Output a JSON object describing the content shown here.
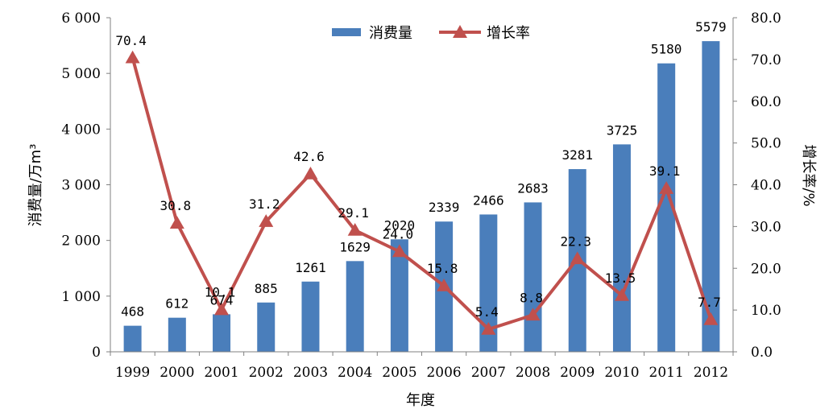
{
  "chart_data": {
    "type": "bar+line",
    "categories": [
      "1999",
      "2000",
      "2001",
      "2002",
      "2003",
      "2004",
      "2005",
      "2006",
      "2007",
      "2008",
      "2009",
      "2010",
      "2011",
      "2012"
    ],
    "series": [
      {
        "name": "消费量",
        "type": "bar",
        "axis": "left",
        "color": "#4a7ebb",
        "values": [
          468,
          612,
          674,
          885,
          1261,
          1629,
          2020,
          2339,
          2466,
          2683,
          3281,
          3725,
          5180,
          5579
        ],
        "labels": [
          "468",
          "612",
          "674",
          "885",
          "1261",
          "1629",
          "2020",
          "2339",
          "2466",
          "2683",
          "3281",
          "3725",
          "5180",
          "5579"
        ]
      },
      {
        "name": "增长率",
        "type": "line",
        "axis": "right",
        "color": "#c0504d",
        "values": [
          70.4,
          30.8,
          10.1,
          31.2,
          42.6,
          29.1,
          24.0,
          15.8,
          5.4,
          8.8,
          22.3,
          13.5,
          39.1,
          7.7
        ],
        "labels": [
          "70.4",
          "30.8",
          "10.1",
          "31.2",
          "42.6",
          "29.1",
          "24.0",
          "15.8",
          "5.4",
          "8.8",
          "22.3",
          "13.5",
          "39.1",
          "7.7"
        ]
      }
    ],
    "xlabel": "年度",
    "ylabel_left": "消费量/万m³",
    "ylabel_right": "增长率/%",
    "ylim_left": [
      0,
      6000
    ],
    "ylim_right": [
      0,
      80
    ],
    "yticks_left": [
      0,
      1000,
      2000,
      3000,
      4000,
      5000,
      6000
    ],
    "ytick_labels_left": [
      "0",
      "1 000",
      "2 000",
      "3 000",
      "4 000",
      "5 000",
      "6 000"
    ],
    "yticks_right": [
      0,
      10,
      20,
      30,
      40,
      50,
      60,
      70,
      80
    ],
    "ytick_labels_right": [
      "0.0",
      "10.0",
      "20.0",
      "30.0",
      "40.0",
      "50.0",
      "60.0",
      "70.0",
      "80.0"
    ],
    "grid": false,
    "legend_position": "top-center"
  }
}
